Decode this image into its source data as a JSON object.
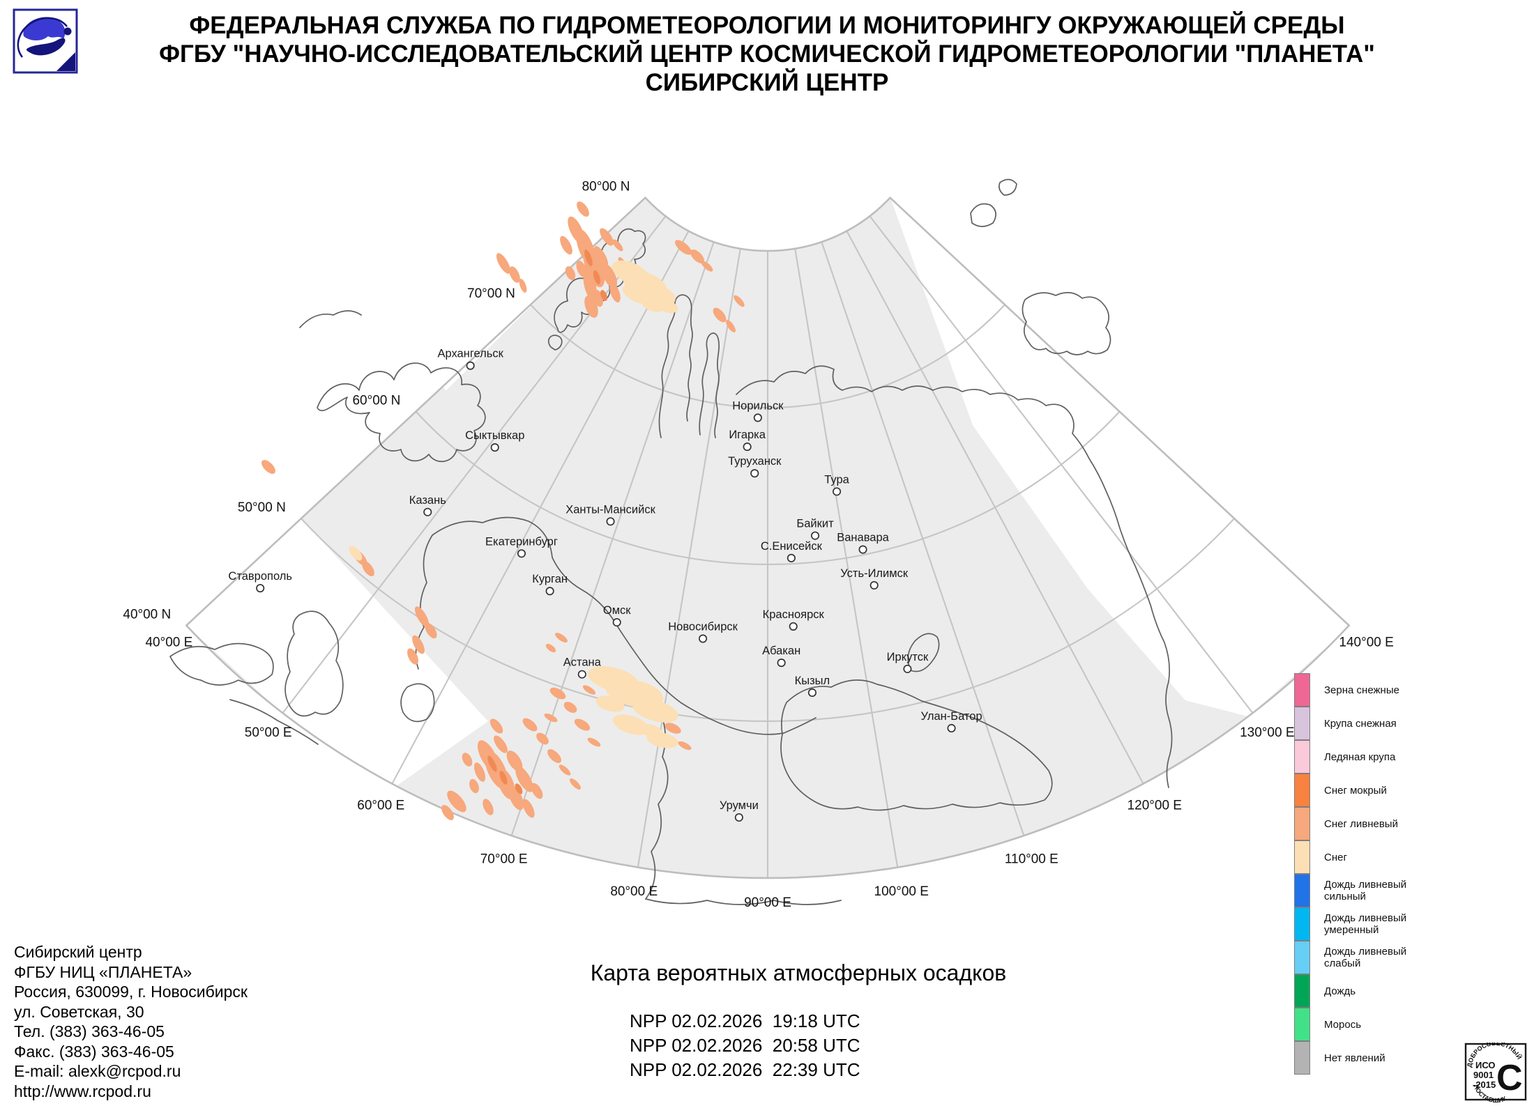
{
  "header": {
    "line1": "ФЕДЕРАЛЬНАЯ СЛУЖБА ПО ГИДРОМЕТЕОРОЛОГИИ И МОНИТОРИНГУ ОКРУЖАЮЩЕЙ СРЕДЫ",
    "line2": "ФГБУ \"НАУЧНО-ИССЛЕДОВАТЕЛЬСКИЙ ЦЕНТР КОСМИЧЕСКОЙ ГИДРОМЕТЕОРОЛОГИИ \"ПЛАНЕТА\"",
    "line3": "СИБИРСКИЙ ЦЕНТР"
  },
  "map": {
    "latitude_labels": [
      "80°00 N",
      "70°00 N",
      "60°00 N",
      "50°00 N",
      "40°00 N"
    ],
    "longitude_labels": [
      "40°00 E",
      "50°00 E",
      "60°00 E",
      "70°00 E",
      "80°00 E",
      "90°00 E",
      "100°00 E",
      "110°00 E",
      "120°00 E",
      "130°00 E",
      "140°00 E"
    ],
    "cities": [
      "Архангельск",
      "Сыктывкар",
      "Казань",
      "Екатеринбург",
      "Курган",
      "Ставрополь",
      "Ханты-Мансийск",
      "Омск",
      "Новосибирск",
      "Астана",
      "Норильск",
      "Игарка",
      "Туруханск",
      "Тура",
      "Байкит",
      "Ванавара",
      "С.Енисейск",
      "Усть-Илимск",
      "Красноярск",
      "Абакан",
      "Кызыл",
      "Иркутск",
      "Улан-Батор",
      "Урумчи"
    ],
    "colors": {
      "coverage": "#ececec",
      "graticule": "#c5c5c5",
      "coast": "#5f5f5f",
      "snow_shower": "#f7a87c",
      "snow": "#fcdfb4",
      "snow_shower_deep": "#f08a54"
    }
  },
  "legend": {
    "items": [
      {
        "label": "Зерна снежные",
        "color": "#ef6795"
      },
      {
        "label": "Крупа снежная",
        "color": "#d9c4de"
      },
      {
        "label": "Ледяная крупа",
        "color": "#fac9da"
      },
      {
        "label": "Снег мокрый",
        "color": "#f8823f"
      },
      {
        "label": "Снег ливневый",
        "color": "#f7a87c"
      },
      {
        "label": "Снег",
        "color": "#fcdfb4"
      },
      {
        "label": "Дождь ливневый сильный",
        "color": "#2173e8"
      },
      {
        "label": "Дождь ливневый умеренный",
        "color": "#00b7f1"
      },
      {
        "label": "Дождь ливневый слабый",
        "color": "#67cef6"
      },
      {
        "label": "Дождь",
        "color": "#00a656"
      },
      {
        "label": "Морось",
        "color": "#41e287"
      },
      {
        "label": "Нет явлений",
        "color": "#b3b3b3"
      }
    ]
  },
  "footer": {
    "contact_lines": [
      "Сибирский центр",
      "ФГБУ НИЦ «ПЛАНЕТА»",
      "Россия, 630099, г. Новосибирск",
      "ул. Советская, 30",
      "Тел. (383) 363-46-05",
      "Факс. (383) 363-46-05",
      "E-mail: alexk@rcpod.ru",
      "http://www.rcpod.ru"
    ],
    "map_title": "Карта вероятных атмосферных осадков",
    "satellite_passes": [
      "NPP 02.02.2026  19:18 UTC",
      "NPP 02.02.2026  20:58 UTC",
      "NPP 02.02.2026  22:39 UTC"
    ]
  },
  "iso_badge": {
    "arc_top": "ДОБРОСОВЕСТНЫЙ",
    "line1": "ИСО",
    "line2": "9001",
    "line3": "-2015",
    "big_letter": "С",
    "arc_bottom": "ПОСТАВЩИК"
  }
}
